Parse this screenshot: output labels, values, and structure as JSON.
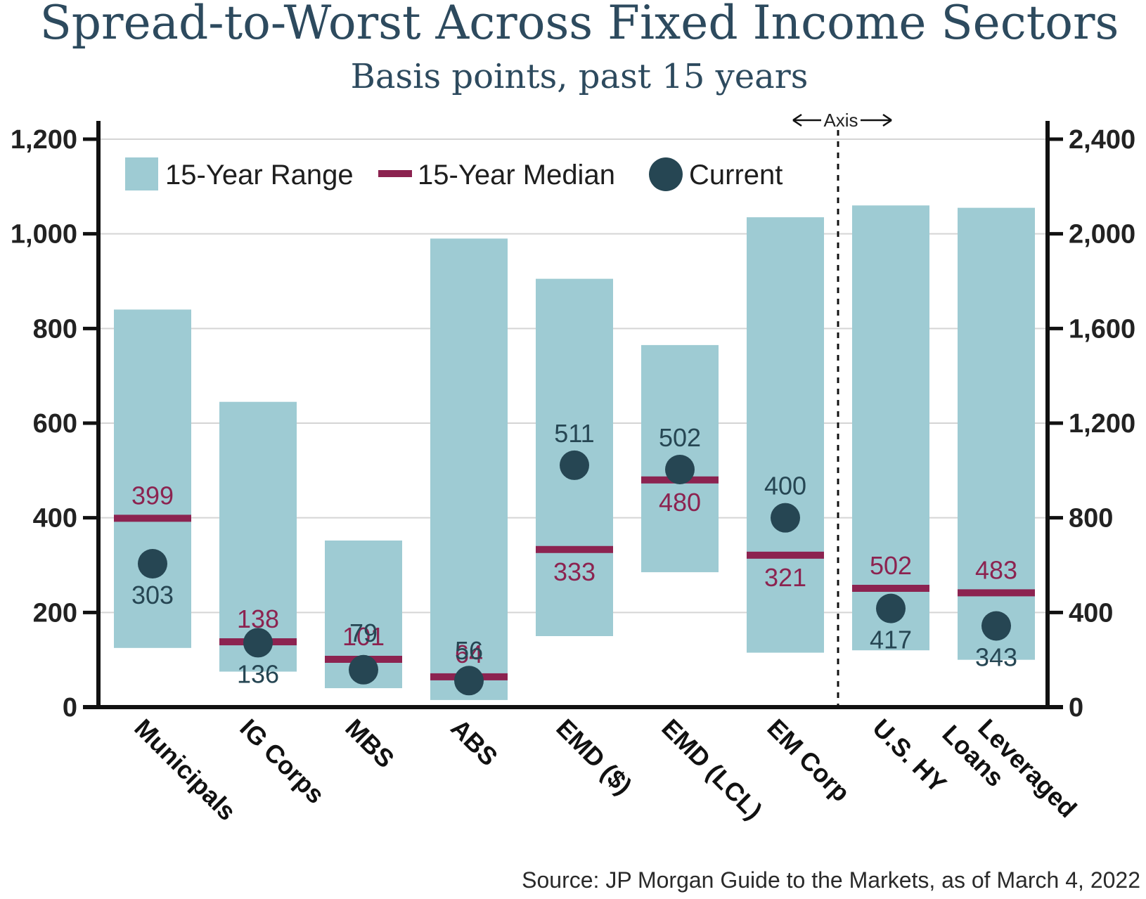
{
  "title": "Spread-to-Worst Across Fixed Income Sectors",
  "subtitle": "Basis points, past 15 years",
  "source": "Source: JP Morgan Guide to the Markets, as of March 4, 2022",
  "axis_note": "Axis",
  "legend": {
    "range": "15-Year Range",
    "median": "15-Year Median",
    "current": "Current"
  },
  "colors": {
    "range": "#9ecbd3",
    "median": "#8c2350",
    "current": "#264653",
    "title": "#2d4a5e",
    "grid": "#d5d5d5"
  },
  "chart_data": {
    "type": "range-bar",
    "title": "Spread-to-Worst Across Fixed Income Sectors",
    "subtitle": "Basis points, past 15 years",
    "left_axis": {
      "ticks": [
        "0",
        "200",
        "400",
        "600",
        "800",
        "1,000",
        "1,200"
      ],
      "ylim": [
        0,
        1200
      ]
    },
    "right_axis": {
      "ticks": [
        "0",
        "400",
        "800",
        "1,200",
        "1,600",
        "2,000",
        "2,400"
      ],
      "ylim": [
        0,
        2400
      ]
    },
    "grid": true,
    "legend_position": "top-left",
    "categories": [
      {
        "name": "Municipals",
        "axis": "left",
        "min": 125,
        "max": 840,
        "median": 399,
        "current": 303,
        "median_label": "399",
        "current_label": "303",
        "median_label_pos": "above",
        "current_label_pos": "below"
      },
      {
        "name": "IG Corps",
        "axis": "left",
        "min": 75,
        "max": 645,
        "median": 138,
        "current": 136,
        "median_label": "138",
        "current_label": "136",
        "median_label_pos": "above",
        "current_label_pos": "below"
      },
      {
        "name": "MBS",
        "axis": "left",
        "min": 40,
        "max": 352,
        "median": 101,
        "current": 79,
        "median_label": "101",
        "current_label": "79",
        "median_label_pos": "above",
        "current_label_pos": "above-median"
      },
      {
        "name": "ABS",
        "axis": "left",
        "min": 15,
        "max": 990,
        "median": 64,
        "current": 56,
        "median_label": "64",
        "current_label": "56",
        "median_label_pos": "above",
        "current_label_pos": "above-median"
      },
      {
        "name": "EMD ($)",
        "axis": "left",
        "min": 150,
        "max": 905,
        "median": 333,
        "current": 511,
        "median_label": "333",
        "current_label": "511",
        "median_label_pos": "below",
        "current_label_pos": "above"
      },
      {
        "name": "EMD (LCL)",
        "axis": "left",
        "min": 285,
        "max": 765,
        "median": 480,
        "current": 502,
        "median_label": "480",
        "current_label": "502",
        "median_label_pos": "below",
        "current_label_pos": "above"
      },
      {
        "name": "EM Corp",
        "axis": "left",
        "min": 115,
        "max": 1035,
        "median": 321,
        "current": 400,
        "median_label": "321",
        "current_label": "400",
        "median_label_pos": "below",
        "current_label_pos": "above"
      },
      {
        "name": "U.S. HY",
        "axis": "right",
        "min": 240,
        "max": 2120,
        "median": 502,
        "current": 417,
        "median_label": "502",
        "current_label": "417",
        "median_label_pos": "above",
        "current_label_pos": "below"
      },
      {
        "name": "Leveraged Loans",
        "name_lines": [
          "Leveraged",
          "Loans"
        ],
        "axis": "right",
        "min": 200,
        "max": 2110,
        "median": 483,
        "current": 343,
        "median_label": "483",
        "current_label": "343",
        "median_label_pos": "above",
        "current_label_pos": "below"
      }
    ]
  }
}
